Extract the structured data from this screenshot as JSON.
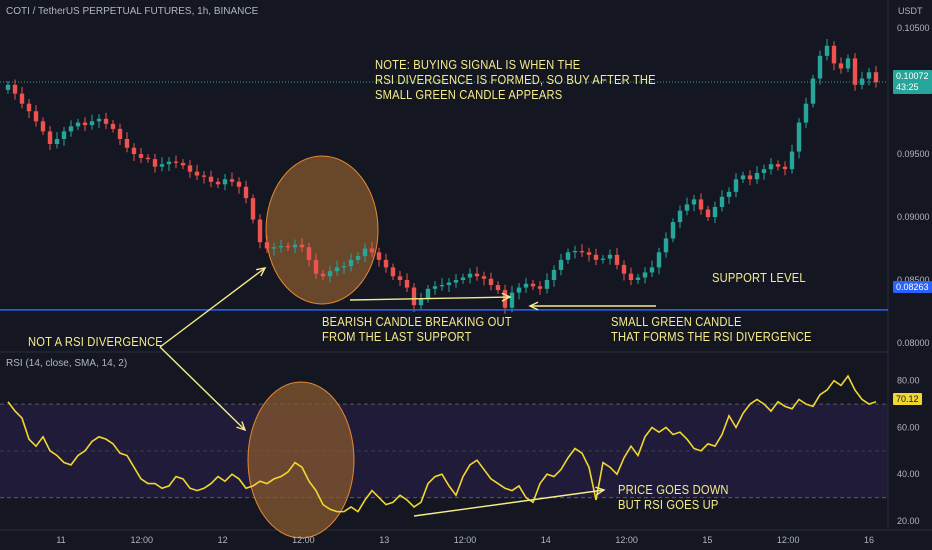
{
  "header": {
    "symbol": "COTI / TetherUS PERPETUAL FUTURES, 1h, BINANCE",
    "currency": "USDT",
    "rsi_label": "RSI (14, close, SMA, 14, 2)"
  },
  "annotations": {
    "note_line1": "NOTE: BUYING SIGNAL IS WHEN THE",
    "note_line2": "RSI DIVERGENCE IS FORMED, SO BUY AFTER THE",
    "note_line3": "SMALL GREEN CANDLE APPEARS",
    "support": "SUPPORT LEVEL",
    "bearish_line1": "BEARISH CANDLE BREAKING OUT",
    "bearish_line2": "FROM THE LAST SUPPORT",
    "green_line1": "SMALL GREEN CANDLE",
    "green_line2": "THAT FORMS THE RSI DIVERGENCE",
    "not_rsi": "NOT A RSI DIVERGENCE",
    "price_line1": "PRICE GOES DOWN",
    "price_line2": "BUT RSI GOES UP"
  },
  "price_tags": {
    "last": "0.10072",
    "countdown": "43:25",
    "support": "0.08263",
    "rsi_last": "70.12"
  },
  "colors": {
    "up": "#26a69a",
    "down": "#ef5350",
    "support": "#2962ff",
    "rsi": "#f2d630",
    "annotation": "#f5ec8a",
    "circle_fill": "#8a5a2e",
    "circle_stroke": "#e58a2e"
  },
  "chart_data": [
    {
      "type": "candlestick",
      "ylim": [
        0.0796,
        0.1066
      ],
      "y_ticks": [
        "0.10500",
        "0.10000",
        "0.09500",
        "0.09000",
        "0.08500",
        "0.08000"
      ],
      "x_ticks": [
        "11",
        "12:00",
        "12",
        "12:00",
        "13",
        "12:00",
        "14",
        "12:00",
        "15",
        "12:00",
        "16"
      ],
      "support_level": 0.08263,
      "last_price": 0.10072,
      "close": [
        0.1005,
        0.0998,
        0.099,
        0.0984,
        0.0976,
        0.0968,
        0.0958,
        0.0962,
        0.0968,
        0.0972,
        0.0975,
        0.0973,
        0.0976,
        0.0978,
        0.0974,
        0.097,
        0.0962,
        0.0955,
        0.095,
        0.0947,
        0.0946,
        0.094,
        0.0942,
        0.0944,
        0.0943,
        0.0941,
        0.0936,
        0.0933,
        0.0932,
        0.0928,
        0.0926,
        0.093,
        0.0928,
        0.0924,
        0.0915,
        0.0898,
        0.088,
        0.0875,
        0.0876,
        0.0877,
        0.0876,
        0.0878,
        0.0876,
        0.0866,
        0.0855,
        0.0853,
        0.0857,
        0.086,
        0.0861,
        0.0866,
        0.0869,
        0.0875,
        0.0872,
        0.0866,
        0.086,
        0.0853,
        0.085,
        0.0844,
        0.083,
        0.0835,
        0.0843,
        0.0845,
        0.0846,
        0.0848,
        0.085,
        0.0852,
        0.0855,
        0.0853,
        0.0851,
        0.0846,
        0.0842,
        0.0828,
        0.084,
        0.0844,
        0.0847,
        0.0845,
        0.0843,
        0.085,
        0.0858,
        0.0866,
        0.0872,
        0.0873,
        0.0872,
        0.087,
        0.0866,
        0.0867,
        0.087,
        0.0862,
        0.0855,
        0.085,
        0.0852,
        0.0856,
        0.086,
        0.0872,
        0.0883,
        0.0896,
        0.0905,
        0.091,
        0.0914,
        0.0906,
        0.09,
        0.0908,
        0.0916,
        0.092,
        0.093,
        0.0933,
        0.093,
        0.0935,
        0.0938,
        0.0942,
        0.094,
        0.0938,
        0.0952,
        0.0975,
        0.099,
        0.101,
        0.1028,
        0.1036,
        0.1022,
        0.1018,
        0.1026,
        0.1005,
        0.101,
        0.1015,
        0.1007
      ]
    },
    {
      "type": "line",
      "title": "RSI (14, close, SMA, 14, 2)",
      "ylim": [
        17,
        88
      ],
      "y_ticks": [
        "80.00",
        "60.00",
        "40.00",
        "20.00"
      ],
      "bands": [
        30,
        70
      ],
      "last_value": 70.12,
      "values": [
        71,
        67,
        64,
        55,
        52,
        56,
        50,
        48,
        45,
        44,
        48,
        50,
        54,
        56,
        55,
        53,
        49,
        48,
        43,
        38,
        36,
        36,
        34,
        35,
        39,
        38,
        34,
        33,
        34,
        36,
        39,
        37,
        40,
        38,
        34,
        35,
        37,
        36,
        38,
        39,
        41,
        45,
        43,
        37,
        33,
        27,
        25,
        24,
        24,
        26,
        24,
        29,
        33,
        30,
        27,
        28,
        31,
        29,
        26,
        28,
        36,
        39,
        40,
        35,
        31,
        39,
        44,
        46,
        42,
        38,
        36,
        34,
        33,
        35,
        30,
        28,
        36,
        40,
        39,
        42,
        47,
        51,
        49,
        43,
        29,
        45,
        43,
        40,
        47,
        52,
        48,
        56,
        60,
        58,
        60,
        57,
        58,
        55,
        51,
        50,
        53,
        52,
        57,
        65,
        60,
        66,
        70,
        72,
        70,
        67,
        71,
        69,
        68,
        72,
        70,
        69,
        74,
        76,
        80,
        78,
        82,
        76,
        72,
        70,
        71
      ]
    }
  ]
}
